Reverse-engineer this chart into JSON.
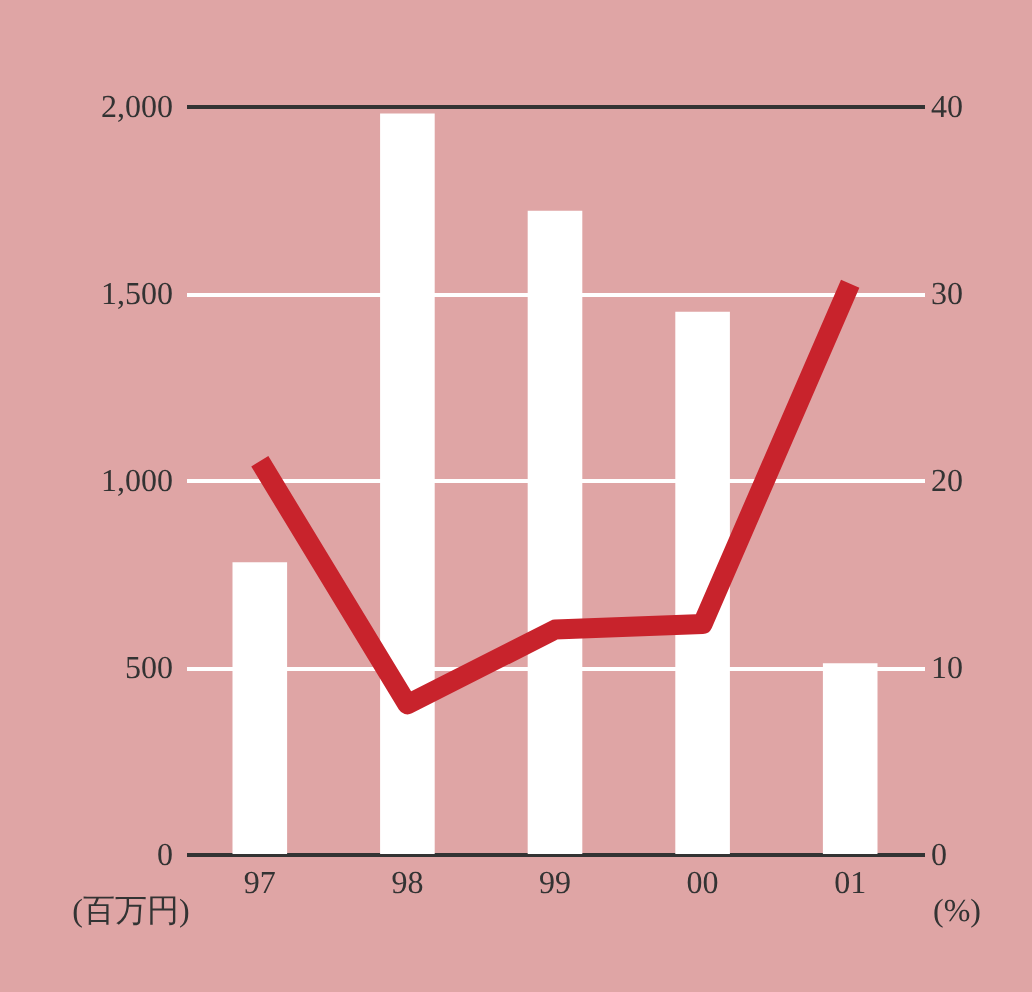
{
  "chart_data": {
    "type": "bar",
    "categories": [
      "97",
      "98",
      "99",
      "00",
      "01"
    ],
    "series": [
      {
        "color": "#ffffff",
        "values": [
          780,
          1980,
          1720,
          1450,
          510
        ]
      },
      {
        "type": "line",
        "color": "#c8232c",
        "axis": "y2",
        "values": [
          21,
          8,
          12,
          12.3,
          30.5
        ]
      }
    ],
    "ylabel": "(百万円)",
    "y2label": "(%)",
    "ylim": [
      0,
      2000
    ],
    "yticks": [
      0,
      500,
      {
        "value": 1000,
        "label": "1,000"
      },
      {
        "value": 1500,
        "label": "1,500"
      },
      {
        "value": 2000,
        "label": "2,000"
      }
    ],
    "y2lim": [
      0,
      40
    ],
    "y2ticks": [
      0,
      10,
      20,
      30,
      40
    ],
    "grid": "y",
    "marker": "none",
    "line_style": "solid"
  }
}
